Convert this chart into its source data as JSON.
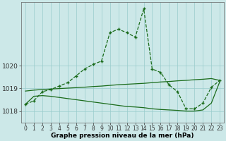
{
  "x": [
    0,
    1,
    2,
    3,
    4,
    5,
    6,
    7,
    8,
    9,
    10,
    11,
    12,
    13,
    14,
    15,
    16,
    17,
    18,
    19,
    20,
    21,
    22,
    23
  ],
  "y_main": [
    1018.3,
    1018.45,
    1018.85,
    1018.95,
    1019.1,
    1019.25,
    1019.55,
    1019.85,
    1020.05,
    1020.2,
    1021.45,
    1021.6,
    1021.45,
    1021.25,
    1022.5,
    1019.85,
    1019.7,
    1019.15,
    1018.85,
    1018.1,
    1018.1,
    1018.35,
    1019.05,
    1019.35
  ],
  "y_upper": [
    1018.88,
    1018.92,
    1018.95,
    1018.97,
    1018.99,
    1019.01,
    1019.03,
    1019.05,
    1019.08,
    1019.1,
    1019.13,
    1019.16,
    1019.18,
    1019.2,
    1019.22,
    1019.25,
    1019.28,
    1019.3,
    1019.33,
    1019.35,
    1019.38,
    1019.4,
    1019.43,
    1019.35
  ],
  "y_lower": [
    1018.3,
    1018.65,
    1018.68,
    1018.65,
    1018.6,
    1018.55,
    1018.5,
    1018.45,
    1018.4,
    1018.35,
    1018.3,
    1018.25,
    1018.2,
    1018.18,
    1018.15,
    1018.1,
    1018.07,
    1018.05,
    1018.03,
    1018.0,
    1018.0,
    1018.05,
    1018.35,
    1019.3
  ],
  "bg_color": "#cce8e8",
  "grid_color": "#99cccc",
  "line_color": "#1a6b1a",
  "title": "Graphe pression niveau de la mer (hPa)",
  "ylim_min": 1017.5,
  "ylim_max": 1022.8,
  "yticks": [
    1018,
    1019,
    1020
  ],
  "xticks": [
    0,
    1,
    2,
    3,
    4,
    5,
    6,
    7,
    8,
    9,
    10,
    11,
    12,
    13,
    14,
    15,
    16,
    17,
    18,
    19,
    20,
    21,
    22,
    23
  ],
  "title_fontsize": 6.5,
  "tick_fontsize": 5.5,
  "ytick_fontsize": 6.5
}
